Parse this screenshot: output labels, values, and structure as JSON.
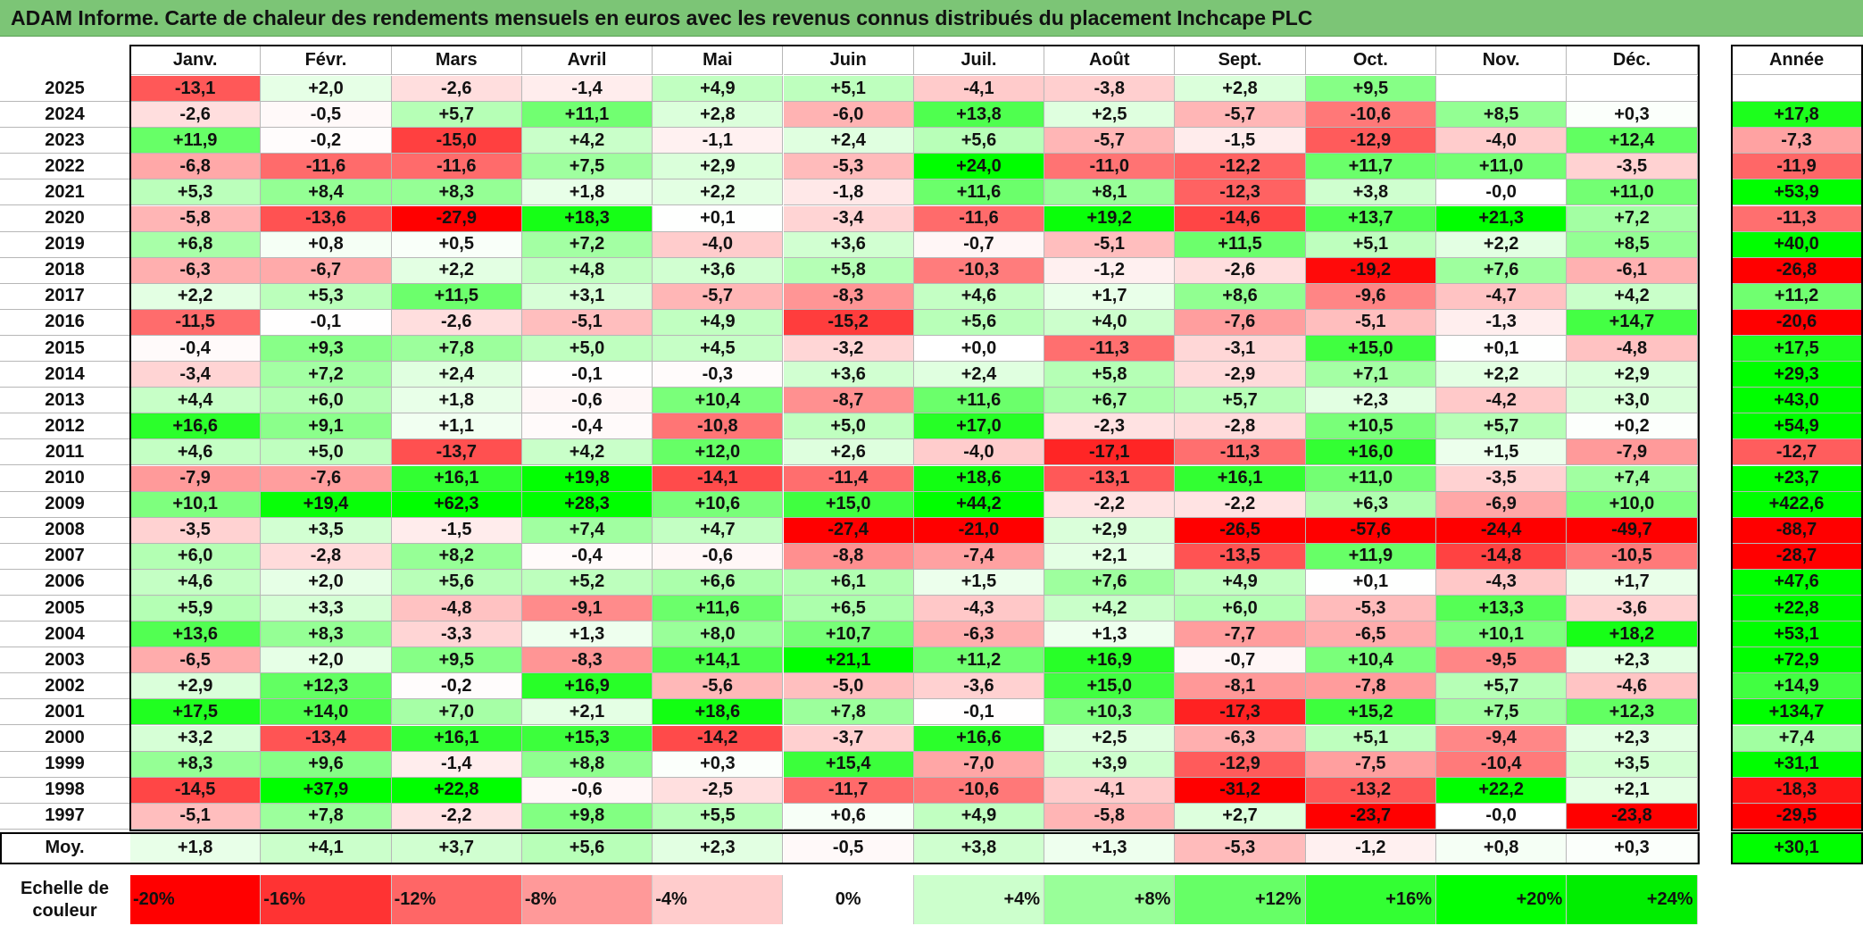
{
  "title": "ADAM Informe. Carte de chaleur des rendements mensuels en euros avec les revenus connus distribués du placement Inchcape PLC",
  "chart_data": {
    "type": "heatmap",
    "title": "ADAM Informe. Carte de chaleur des rendements mensuels en euros avec les revenus connus distribués du placement Inchcape PLC",
    "months": [
      "Janv.",
      "Févr.",
      "Mars",
      "Avril",
      "Mai",
      "Juin",
      "Juil.",
      "Août",
      "Sept.",
      "Oct.",
      "Nov.",
      "Déc."
    ],
    "year_header": "Année",
    "rows": [
      {
        "year": "2025",
        "values": [
          "-13,1",
          "+2,0",
          "-2,6",
          "-1,4",
          "+4,9",
          "+5,1",
          "-4,1",
          "-3,8",
          "+2,8",
          "+9,5",
          "",
          ""
        ],
        "annual": ""
      },
      {
        "year": "2024",
        "values": [
          "-2,6",
          "-0,5",
          "+5,7",
          "+11,1",
          "+2,8",
          "-6,0",
          "+13,8",
          "+2,5",
          "-5,7",
          "-10,6",
          "+8,5",
          "+0,3"
        ],
        "annual": "+17,8"
      },
      {
        "year": "2023",
        "values": [
          "+11,9",
          "-0,2",
          "-15,0",
          "+4,2",
          "-1,1",
          "+2,4",
          "+5,6",
          "-5,7",
          "-1,5",
          "-12,9",
          "-4,0",
          "+12,4"
        ],
        "annual": "-7,3"
      },
      {
        "year": "2022",
        "values": [
          "-6,8",
          "-11,6",
          "-11,6",
          "+7,5",
          "+2,9",
          "-5,3",
          "+24,0",
          "-11,0",
          "-12,2",
          "+11,7",
          "+11,0",
          "-3,5"
        ],
        "annual": "-11,9"
      },
      {
        "year": "2021",
        "values": [
          "+5,3",
          "+8,4",
          "+8,3",
          "+1,8",
          "+2,2",
          "-1,8",
          "+11,6",
          "+8,1",
          "-12,3",
          "+3,8",
          "-0,0",
          "+11,0"
        ],
        "annual": "+53,9"
      },
      {
        "year": "2020",
        "values": [
          "-5,8",
          "-13,6",
          "-27,9",
          "+18,3",
          "+0,1",
          "-3,4",
          "-11,6",
          "+19,2",
          "-14,6",
          "+13,7",
          "+21,3",
          "+7,2"
        ],
        "annual": "-11,3"
      },
      {
        "year": "2019",
        "values": [
          "+6,8",
          "+0,8",
          "+0,5",
          "+7,2",
          "-4,0",
          "+3,6",
          "-0,7",
          "-5,1",
          "+11,5",
          "+5,1",
          "+2,2",
          "+8,5"
        ],
        "annual": "+40,0"
      },
      {
        "year": "2018",
        "values": [
          "-6,3",
          "-6,7",
          "+2,2",
          "+4,8",
          "+3,6",
          "+5,8",
          "-10,3",
          "-1,2",
          "-2,6",
          "-19,2",
          "+7,6",
          "-6,1"
        ],
        "annual": "-26,8"
      },
      {
        "year": "2017",
        "values": [
          "+2,2",
          "+5,3",
          "+11,5",
          "+3,1",
          "-5,7",
          "-8,3",
          "+4,6",
          "+1,7",
          "+8,6",
          "-9,6",
          "-4,7",
          "+4,2"
        ],
        "annual": "+11,2"
      },
      {
        "year": "2016",
        "values": [
          "-11,5",
          "-0,1",
          "-2,6",
          "-5,1",
          "+4,9",
          "-15,2",
          "+5,6",
          "+4,0",
          "-7,6",
          "-5,1",
          "-1,3",
          "+14,7"
        ],
        "annual": "-20,6"
      },
      {
        "year": "2015",
        "values": [
          "-0,4",
          "+9,3",
          "+7,8",
          "+5,0",
          "+4,5",
          "-3,2",
          "+0,0",
          "-11,3",
          "-3,1",
          "+15,0",
          "+0,1",
          "-4,8"
        ],
        "annual": "+17,5"
      },
      {
        "year": "2014",
        "values": [
          "-3,4",
          "+7,2",
          "+2,4",
          "-0,1",
          "-0,3",
          "+3,6",
          "+2,4",
          "+5,8",
          "-2,9",
          "+7,1",
          "+2,2",
          "+2,9"
        ],
        "annual": "+29,3"
      },
      {
        "year": "2013",
        "values": [
          "+4,4",
          "+6,0",
          "+1,8",
          "-0,6",
          "+10,4",
          "-8,7",
          "+11,6",
          "+6,7",
          "+5,7",
          "+2,3",
          "-4,2",
          "+3,0"
        ],
        "annual": "+43,0"
      },
      {
        "year": "2012",
        "values": [
          "+16,6",
          "+9,1",
          "+1,1",
          "-0,4",
          "-10,8",
          "+5,0",
          "+17,0",
          "-2,3",
          "-2,8",
          "+10,5",
          "+5,7",
          "+0,2"
        ],
        "annual": "+54,9"
      },
      {
        "year": "2011",
        "values": [
          "+4,6",
          "+5,0",
          "-13,7",
          "+4,2",
          "+12,0",
          "+2,6",
          "-4,0",
          "-17,1",
          "-11,3",
          "+16,0",
          "+1,5",
          "-7,9"
        ],
        "annual": "-12,7"
      },
      {
        "year": "2010",
        "values": [
          "-7,9",
          "-7,6",
          "+16,1",
          "+19,8",
          "-14,1",
          "-11,4",
          "+18,6",
          "-13,1",
          "+16,1",
          "+11,0",
          "-3,5",
          "+7,4"
        ],
        "annual": "+23,7"
      },
      {
        "year": "2009",
        "values": [
          "+10,1",
          "+19,4",
          "+62,3",
          "+28,3",
          "+10,6",
          "+15,0",
          "+44,2",
          "-2,2",
          "-2,2",
          "+6,3",
          "-6,9",
          "+10,0"
        ],
        "annual": "+422,6"
      },
      {
        "year": "2008",
        "values": [
          "-3,5",
          "+3,5",
          "-1,5",
          "+7,4",
          "+4,7",
          "-27,4",
          "-21,0",
          "+2,9",
          "-26,5",
          "-57,6",
          "-24,4",
          "-49,7"
        ],
        "annual": "-88,7"
      },
      {
        "year": "2007",
        "values": [
          "+6,0",
          "-2,8",
          "+8,2",
          "-0,4",
          "-0,6",
          "-8,8",
          "-7,4",
          "+2,1",
          "-13,5",
          "+11,9",
          "-14,8",
          "-10,5"
        ],
        "annual": "-28,7"
      },
      {
        "year": "2006",
        "values": [
          "+4,6",
          "+2,0",
          "+5,6",
          "+5,2",
          "+6,6",
          "+6,1",
          "+1,5",
          "+7,6",
          "+4,9",
          "+0,1",
          "-4,3",
          "+1,7"
        ],
        "annual": "+47,6"
      },
      {
        "year": "2005",
        "values": [
          "+5,9",
          "+3,3",
          "-4,8",
          "-9,1",
          "+11,6",
          "+6,5",
          "-4,3",
          "+4,2",
          "+6,0",
          "-5,3",
          "+13,3",
          "-3,6"
        ],
        "annual": "+22,8"
      },
      {
        "year": "2004",
        "values": [
          "+13,6",
          "+8,3",
          "-3,3",
          "+1,3",
          "+8,0",
          "+10,7",
          "-6,3",
          "+1,3",
          "-7,7",
          "-6,5",
          "+10,1",
          "+18,2"
        ],
        "annual": "+53,1"
      },
      {
        "year": "2003",
        "values": [
          "-6,5",
          "+2,0",
          "+9,5",
          "-8,3",
          "+14,1",
          "+21,1",
          "+11,2",
          "+16,9",
          "-0,7",
          "+10,4",
          "-9,5",
          "+2,3"
        ],
        "annual": "+72,9"
      },
      {
        "year": "2002",
        "values": [
          "+2,9",
          "+12,3",
          "-0,2",
          "+16,9",
          "-5,6",
          "-5,0",
          "-3,6",
          "+15,0",
          "-8,1",
          "-7,8",
          "+5,7",
          "-4,6"
        ],
        "annual": "+14,9"
      },
      {
        "year": "2001",
        "values": [
          "+17,5",
          "+14,0",
          "+7,0",
          "+2,1",
          "+18,6",
          "+7,8",
          "-0,1",
          "+10,3",
          "-17,3",
          "+15,2",
          "+7,5",
          "+12,3"
        ],
        "annual": "+134,7"
      },
      {
        "year": "2000",
        "values": [
          "+3,2",
          "-13,4",
          "+16,1",
          "+15,3",
          "-14,2",
          "-3,7",
          "+16,6",
          "+2,5",
          "-6,3",
          "+5,1",
          "-9,4",
          "+2,3"
        ],
        "annual": "+7,4"
      },
      {
        "year": "1999",
        "values": [
          "+8,3",
          "+9,6",
          "-1,4",
          "+8,8",
          "+0,3",
          "+15,4",
          "-7,0",
          "+3,9",
          "-12,9",
          "-7,5",
          "-10,4",
          "+3,5"
        ],
        "annual": "+31,1"
      },
      {
        "year": "1998",
        "values": [
          "-14,5",
          "+37,9",
          "+22,8",
          "-0,6",
          "-2,5",
          "-11,7",
          "-10,6",
          "-4,1",
          "-31,2",
          "-13,2",
          "+22,2",
          "+2,1"
        ],
        "annual": "-18,3"
      },
      {
        "year": "1997",
        "values": [
          "-5,1",
          "+7,8",
          "-2,2",
          "+9,8",
          "+5,5",
          "+0,6",
          "+4,9",
          "-5,8",
          "+2,7",
          "-23,7",
          "-0,0",
          "-23,8"
        ],
        "annual": "-29,5"
      }
    ],
    "average": {
      "label": "Moy.",
      "values": [
        "+1,8",
        "+4,1",
        "+3,7",
        "+5,6",
        "+2,3",
        "-0,5",
        "+3,8",
        "+1,3",
        "-5,3",
        "-1,2",
        "+0,8",
        "+0,3"
      ],
      "annual": "+30,1"
    },
    "color_scale": {
      "label": "Echelle de couleur",
      "steps": [
        {
          "label": "-20%",
          "value": -20,
          "color": "#ff0000"
        },
        {
          "label": "-16%",
          "value": -16,
          "color": "#ff3333"
        },
        {
          "label": "-12%",
          "value": -12,
          "color": "#ff6666"
        },
        {
          "label": "-8%",
          "value": -8,
          "color": "#ff9999"
        },
        {
          "label": "-4%",
          "value": -4,
          "color": "#ffcccc"
        },
        {
          "label": "0%",
          "value": 0,
          "color": "#ffffff"
        },
        {
          "label": "+4%",
          "value": 4,
          "color": "#ccffcc"
        },
        {
          "label": "+8%",
          "value": 8,
          "color": "#99ff99"
        },
        {
          "label": "+12%",
          "value": 12,
          "color": "#66ff66"
        },
        {
          "label": "+16%",
          "value": 16,
          "color": "#33ff33"
        },
        {
          "label": "+20%",
          "value": 20,
          "color": "#00ff00"
        },
        {
          "label": "+24%",
          "value": 24,
          "color": "#00ee00"
        }
      ]
    }
  }
}
